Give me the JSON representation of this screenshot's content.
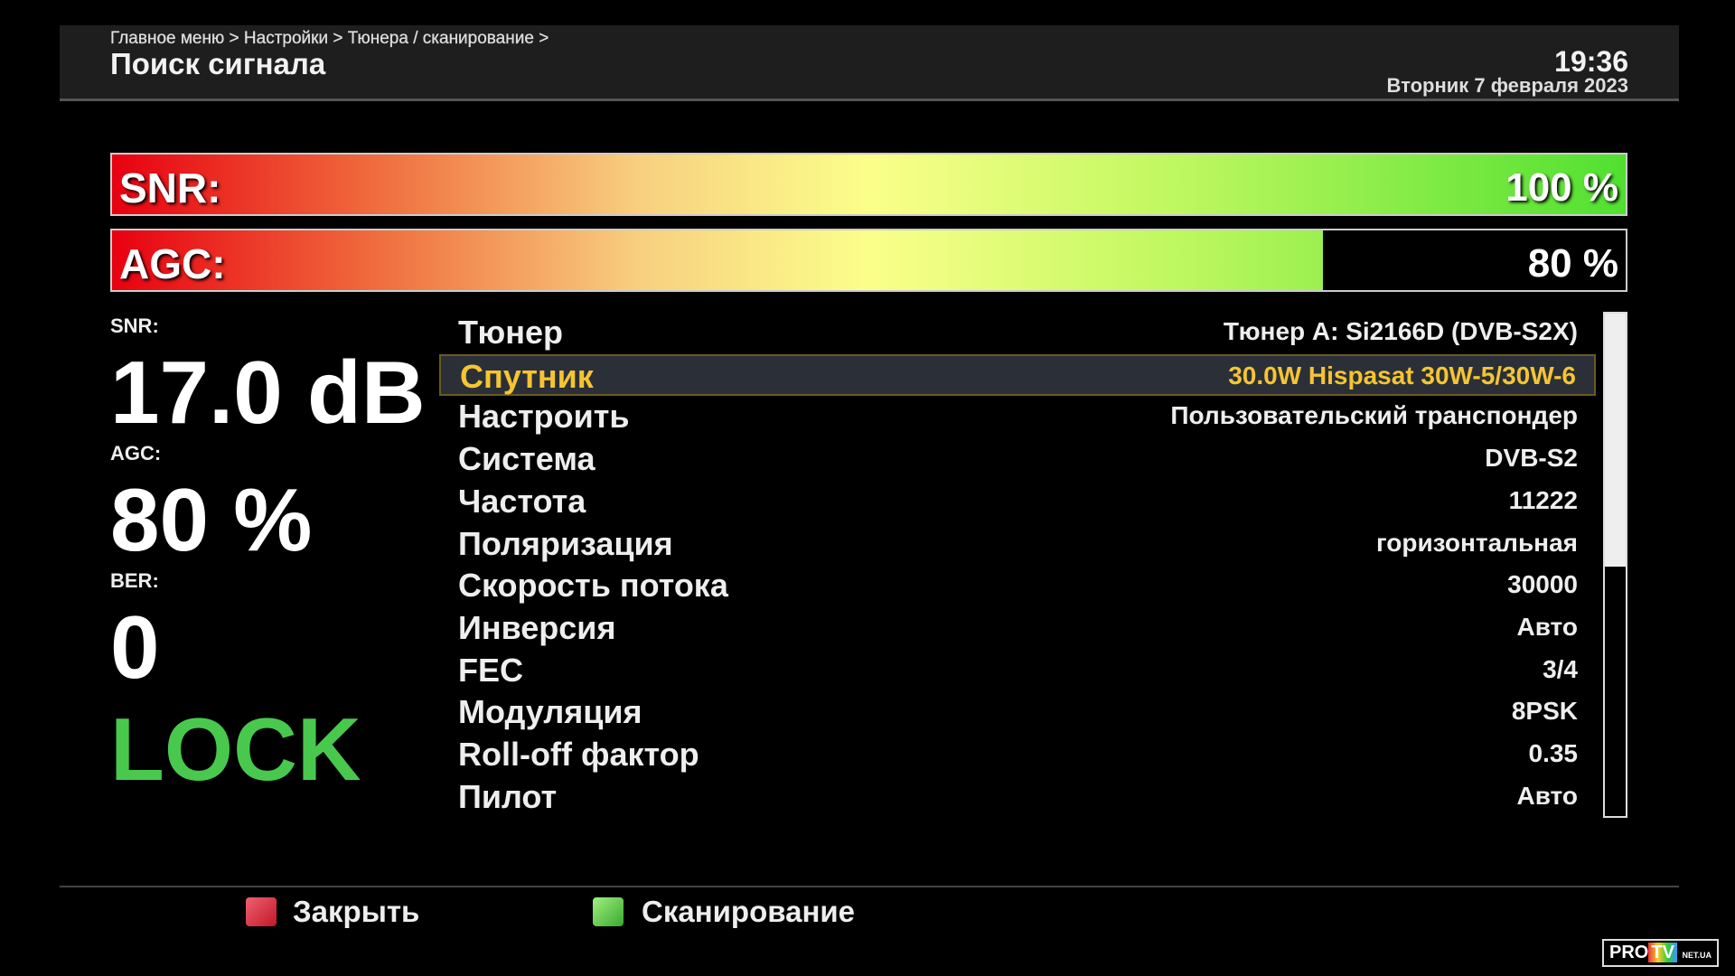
{
  "header": {
    "breadcrumb": "Главное меню > Настройки > Тюнера / сканирование >",
    "title": "Поиск сигнала",
    "time": "19:36",
    "date": "Вторник  7 февраля 2023"
  },
  "bars": {
    "snr": {
      "label": "SNR:",
      "value_text": "100 %",
      "percent": 100
    },
    "agc": {
      "label": "AGC:",
      "value_text": "80 %",
      "percent": 80
    }
  },
  "stats": {
    "snr_label": "SNR:",
    "snr_value": "17.0 dB",
    "agc_label": "AGC:",
    "agc_value": "80 %",
    "ber_label": "BER:",
    "ber_value": "0",
    "lock": "LOCK",
    "lock_color": "#49c84e"
  },
  "params": [
    {
      "key": "Тюнер",
      "value": "Тюнер A: Si2166D (DVB-S2X)"
    },
    {
      "key": "Спутник",
      "value": "30.0W Hispasat 30W-5/30W-6",
      "selected": true
    },
    {
      "key": "Настроить",
      "value": "Пользовательский транспондер"
    },
    {
      "key": "Система",
      "value": "DVB-S2"
    },
    {
      "key": "Частота",
      "value": "11222"
    },
    {
      "key": "Поляризация",
      "value": "горизонтальная"
    },
    {
      "key": "Скорость потока",
      "value": "30000"
    },
    {
      "key": "Инверсия",
      "value": "Авто"
    },
    {
      "key": "FEC",
      "value": "3/4"
    },
    {
      "key": "Модуляция",
      "value": "8PSK"
    },
    {
      "key": "Roll-off фактор",
      "value": "0.35"
    },
    {
      "key": "Пилот",
      "value": "Авто"
    }
  ],
  "footer": {
    "close_label": "Закрыть",
    "scan_label": "Сканирование",
    "red": "#d8283a",
    "green": "#5cc84a"
  },
  "logo": {
    "text1": "PRO",
    "text2": "TV",
    "text3": "NET.UA"
  }
}
